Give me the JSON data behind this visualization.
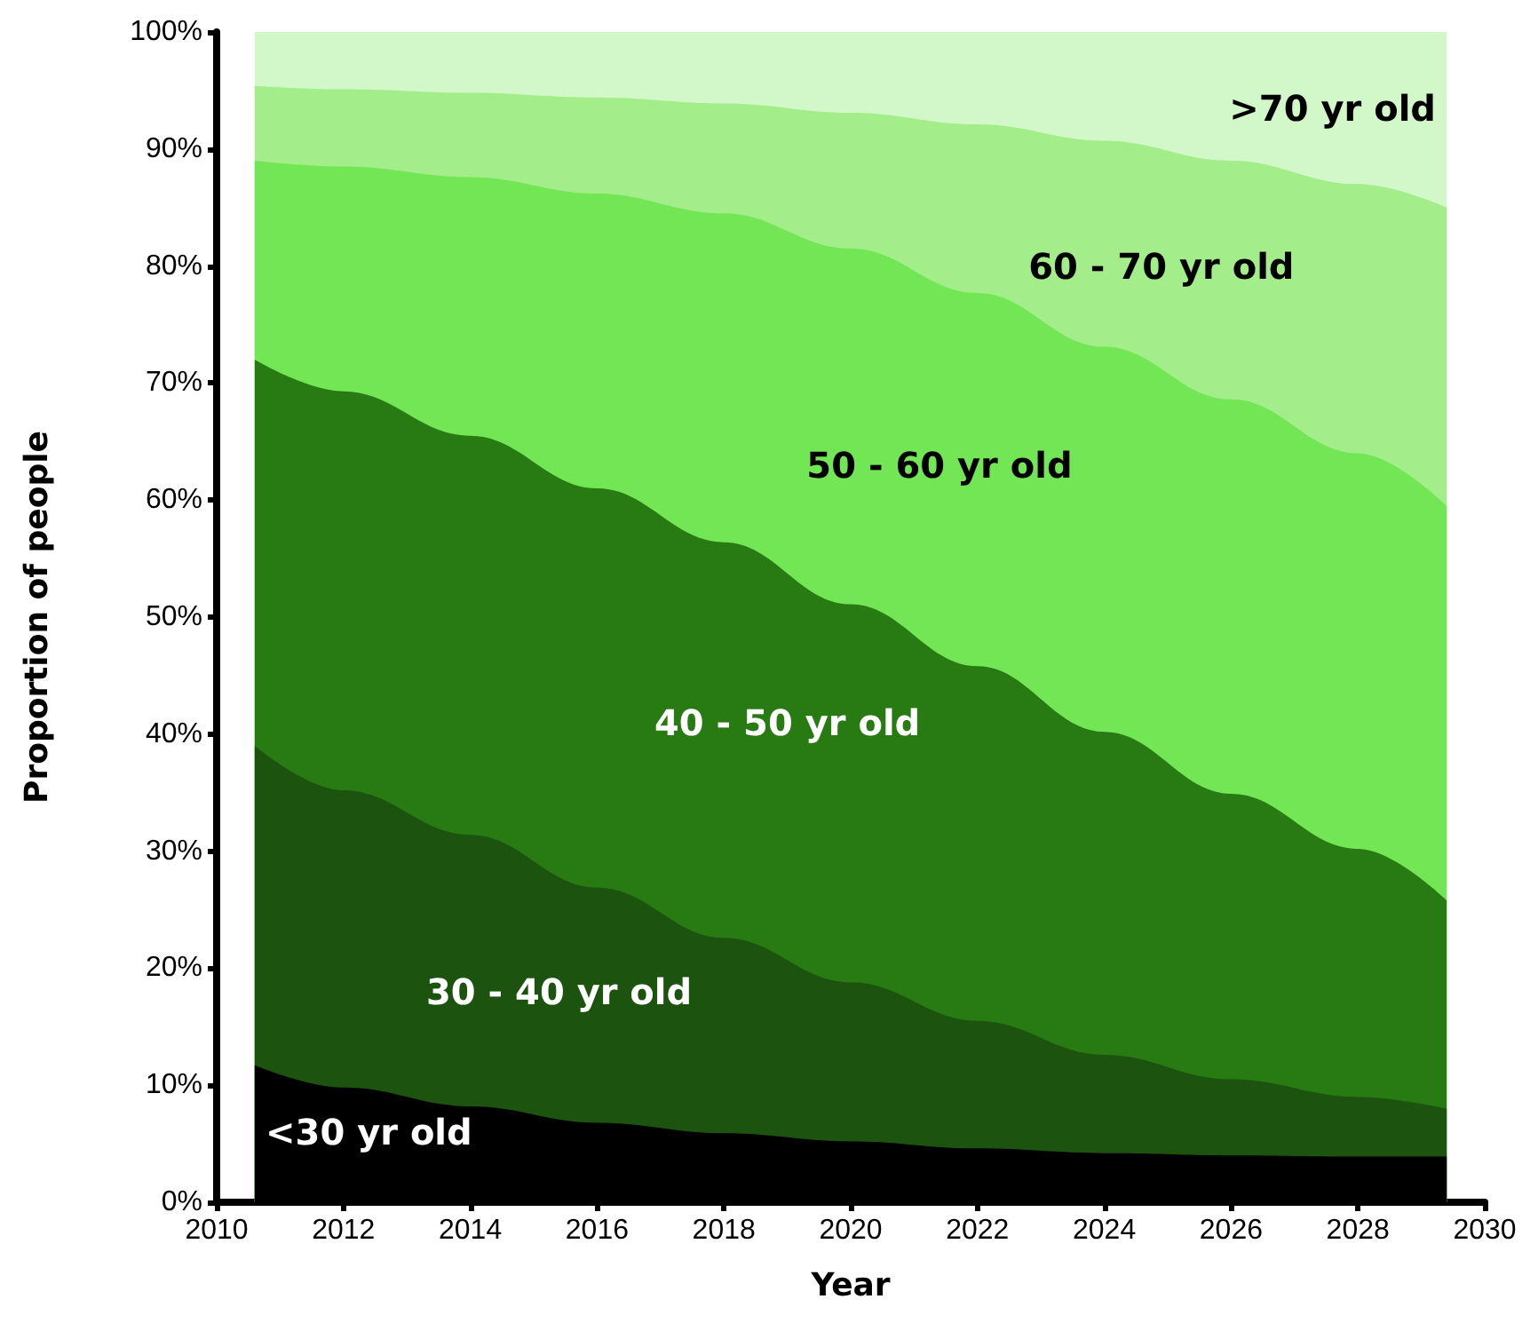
{
  "chart_data": {
    "type": "area",
    "stacked": true,
    "xlabel": "Year",
    "ylabel": "Proportion of people",
    "x": [
      2010.6,
      2012,
      2014,
      2016,
      2018,
      2020,
      2022,
      2024,
      2026,
      2028,
      2029.4
    ],
    "series": [
      {
        "name": "<30 yr old",
        "color": "#000000",
        "values": [
          11.7,
          9.8,
          8.2,
          6.8,
          5.9,
          5.2,
          4.6,
          4.2,
          4.0,
          3.9,
          3.9
        ]
      },
      {
        "name": "30 - 40 yr old",
        "color": "#1b530f",
        "values": [
          27.3,
          25.4,
          23.2,
          20.1,
          16.7,
          13.6,
          10.9,
          8.4,
          6.5,
          5.1,
          4.1
        ]
      },
      {
        "name": "40 - 50 yr old",
        "color": "#287a12",
        "values": [
          33,
          34.1,
          34.1,
          34.1,
          33.8,
          32.3,
          30.3,
          27.6,
          24.4,
          21.2,
          17.8
        ]
      },
      {
        "name": "50 - 60 yr old",
        "color": "#73e656",
        "values": [
          17,
          19.2,
          22.1,
          25.2,
          28.1,
          30.4,
          31.9,
          32.9,
          33.7,
          33.8,
          33.7
        ]
      },
      {
        "name": "60 - 70 yr old",
        "color": "#a3ee8a",
        "values": [
          6.4,
          6.6,
          7.2,
          8.2,
          9.4,
          11.6,
          14.4,
          17.6,
          20.4,
          23,
          25.5
        ]
      },
      {
        "name": ">70 yr old",
        "color": "#d2f7c8",
        "values": [
          4.6,
          4.9,
          5.2,
          5.6,
          6.1,
          6.9,
          7.9,
          9.3,
          11,
          13,
          15
        ]
      }
    ],
    "xlim": [
      2010,
      2030
    ],
    "xticks": [
      2010,
      2012,
      2014,
      2016,
      2018,
      2020,
      2022,
      2024,
      2026,
      2028,
      2030
    ],
    "ylim": [
      0,
      100
    ],
    "yticks": [
      {
        "value": 0,
        "label": "0%"
      },
      {
        "value": 10,
        "label": "10%"
      },
      {
        "value": 20,
        "label": "20%"
      },
      {
        "value": 30,
        "label": "30%"
      },
      {
        "value": 40,
        "label": "40%"
      },
      {
        "value": 50,
        "label": "50%"
      },
      {
        "value": 60,
        "label": "60%"
      },
      {
        "value": 70,
        "label": "70%"
      },
      {
        "value": 80,
        "label": "80%"
      },
      {
        "value": 90,
        "label": "90%"
      },
      {
        "value": 100,
        "label": "100%"
      }
    ],
    "grid": false,
    "legend": false,
    "marker": "none"
  }
}
